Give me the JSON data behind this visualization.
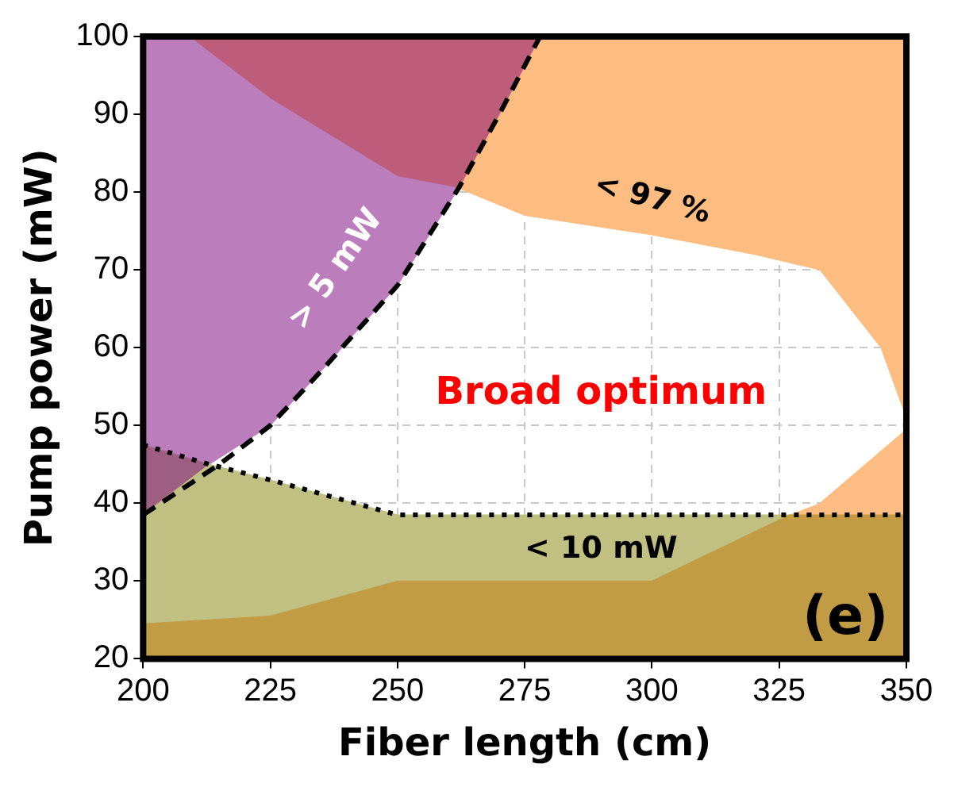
{
  "chart_data": {
    "type": "area",
    "xlabel": "Fiber length (cm)",
    "ylabel": "Pump power (mW)",
    "xlim": [
      200,
      350
    ],
    "xticks": [
      200,
      225,
      250,
      275,
      300,
      325,
      350
    ],
    "ylim": [
      20,
      100
    ],
    "yticks": [
      20,
      30,
      40,
      50,
      60,
      70,
      80,
      90,
      100
    ],
    "grid": true,
    "marker": "none",
    "series": [
      {
        "color": "#c29c44",
        "x": [
          200,
          350,
          350,
          327,
          300,
          250,
          225,
          200
        ],
        "values": [
          20,
          20,
          38.5,
          38.5,
          30,
          30,
          25.5,
          24.5
        ]
      },
      {
        "color": "#c0c082",
        "x": [
          200,
          225,
          250,
          300,
          327,
          300,
          250,
          225,
          213,
          200
        ],
        "values": [
          24.5,
          25.5,
          30,
          30,
          38.5,
          38.5,
          38.5,
          43,
          45,
          38.5
        ]
      },
      {
        "color": "#9e5f82",
        "x": [
          200,
          213,
          200
        ],
        "values": [
          38.5,
          45,
          47.5
        ]
      },
      {
        "color": "#bc7dbd",
        "x": [
          200,
          213,
          225,
          235,
          250,
          262,
          250,
          235,
          225,
          209,
          200
        ],
        "values": [
          47.5,
          45,
          50,
          57,
          68,
          80.5,
          82,
          88,
          92,
          100,
          100
        ]
      },
      {
        "color": "#bd5c7b",
        "x": [
          209,
          225,
          235,
          250,
          262,
          270,
          278
        ],
        "values": [
          100,
          92,
          88,
          82,
          80.5,
          90,
          100
        ]
      },
      {
        "color": "#fdbd80",
        "x": [
          278,
          350,
          350,
          345,
          333,
          320,
          300,
          275,
          262,
          270
        ],
        "values": [
          100,
          100,
          51,
          60,
          70,
          72,
          74.5,
          77,
          80.5,
          90
        ]
      },
      {
        "color": "#fcbc82",
        "x": [
          327,
          350,
          350,
          333
        ],
        "values": [
          38.5,
          38.5,
          49.5,
          40
        ]
      },
      {
        "type": "line",
        "color": "#000000",
        "line_style": "dashed",
        "x": [
          200,
          215,
          225,
          235,
          250,
          262,
          270,
          278
        ],
        "values": [
          38.5,
          45,
          50,
          57,
          68,
          80.5,
          90,
          100
        ]
      },
      {
        "type": "line",
        "color": "#000000",
        "line_style": "dotted",
        "x": [
          200,
          213,
          225,
          250,
          300,
          350
        ],
        "values": [
          47.5,
          45,
          43,
          38.5,
          38.5,
          38.5
        ]
      }
    ],
    "annotations": [
      "> 5 mW",
      "< 97 %",
      "Broad optimum",
      "< 10 mW",
      "(e)"
    ]
  }
}
